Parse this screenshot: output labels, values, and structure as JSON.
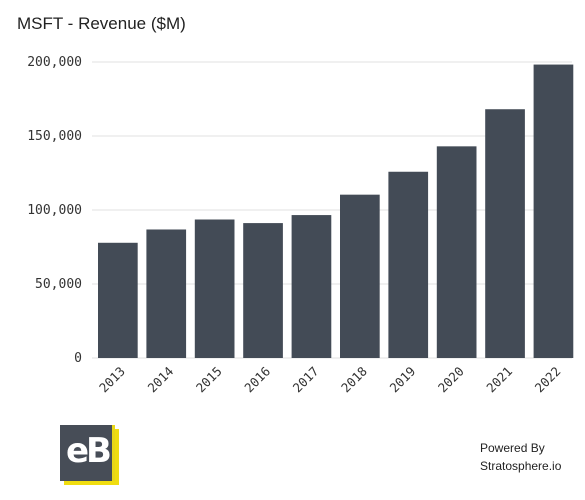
{
  "chart_data": {
    "type": "bar",
    "title": "MSFT - Revenue ($M)",
    "categories": [
      "2013",
      "2014",
      "2015",
      "2016",
      "2017",
      "2018",
      "2019",
      "2020",
      "2021",
      "2022"
    ],
    "values": [
      77849,
      86833,
      93580,
      91154,
      96571,
      110360,
      125843,
      143015,
      168088,
      198270
    ],
    "ylim": [
      0,
      200000
    ],
    "yticks": [
      0,
      50000,
      100000,
      150000,
      200000
    ],
    "ytick_labels": [
      "0",
      "50,000",
      "100,000",
      "150,000",
      "200,000"
    ],
    "grid": true,
    "bar_color": "#434b56"
  },
  "logo": {
    "text": "eB"
  },
  "footer": {
    "powered_by": "Powered By",
    "source": "Stratosphere.io"
  }
}
